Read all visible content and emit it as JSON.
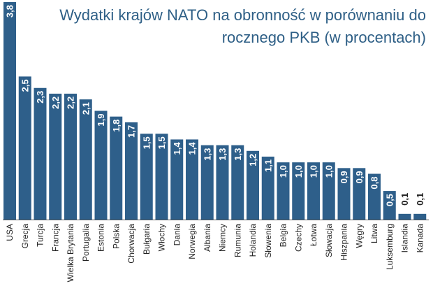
{
  "chart_data": {
    "type": "bar",
    "title": "Wydatki krajów NATO na obronność w porównaniu do\nrocznego PKB (w procentach)",
    "xlabel": "",
    "ylabel": "",
    "ylim": [
      0,
      3.8
    ],
    "categories": [
      "USA",
      "Grecja",
      "Turcja",
      "Francja",
      "Wielka Brytania",
      "Portugalia",
      "Estonia",
      "Polska",
      "Chorwacja",
      "Bułgaria",
      "Włochy",
      "Dania",
      "Norwegia",
      "Albania",
      "Niemcy",
      "Rumunia",
      "Holandia",
      "Słowenia",
      "Belgia",
      "Czechy",
      "Łotwa",
      "Słowacja",
      "Hiszpania",
      "Węgry",
      "Litwa",
      "Luksemburg",
      "Islandia",
      "Kanada"
    ],
    "values": [
      3.8,
      2.5,
      2.3,
      2.2,
      2.2,
      2.1,
      1.9,
      1.8,
      1.7,
      1.5,
      1.5,
      1.4,
      1.4,
      1.3,
      1.3,
      1.3,
      1.2,
      1.1,
      1.0,
      1.0,
      1.0,
      1.0,
      0.9,
      0.9,
      0.8,
      0.5,
      0.1,
      0.1
    ],
    "data_labels": [
      "3,8",
      "2,5",
      "2,3",
      "2,2",
      "2,2",
      "2,1",
      "1,9",
      "1,8",
      "1,7",
      "1,5",
      "1,5",
      "1,4",
      "1,4",
      "1,3",
      "1,3",
      "1,3",
      "1,2",
      "1,1",
      "1,0",
      "1,0",
      "1,0",
      "1,0",
      "0,9",
      "0,9",
      "0,8",
      "0,5",
      "0,1",
      "0,1"
    ],
    "bar_color": "#2e5f8a",
    "label_color_inside": "#ffffff",
    "label_color_outside": "#222222",
    "title_color": "#2e5f86",
    "axis_color": "#555555"
  }
}
